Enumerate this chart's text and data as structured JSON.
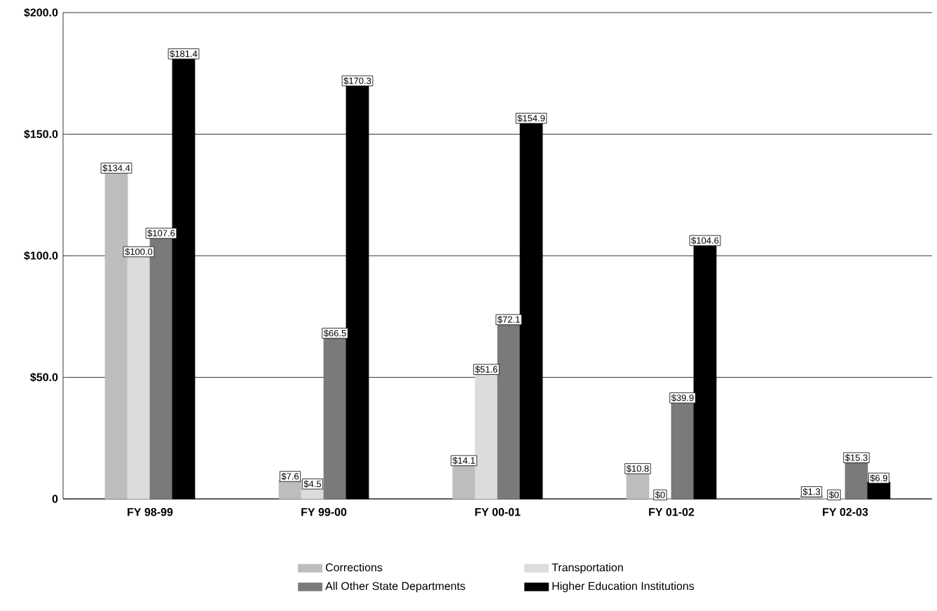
{
  "chart_data": {
    "type": "bar",
    "categories": [
      "FY 98-99",
      "FY 99-00",
      "FY 00-01",
      "FY 01-02",
      "FY 02-03"
    ],
    "series": [
      {
        "name": "Corrections",
        "color": "#bdbdbd",
        "values": [
          134.4,
          7.6,
          14.1,
          10.8,
          1.3
        ],
        "value_labels": [
          "$134.4",
          "$7.6",
          "$14.1",
          "$10.8",
          "$1.3"
        ]
      },
      {
        "name": "Transportation",
        "color": "#dcdcdc",
        "values": [
          100.0,
          4.5,
          51.6,
          0,
          0
        ],
        "value_labels": [
          "$100.0",
          "$4.5",
          "$51.6",
          "$0",
          "$0"
        ]
      },
      {
        "name": "All Other State Departments",
        "color": "#7a7a7a",
        "values": [
          107.6,
          66.5,
          72.1,
          39.9,
          15.3
        ],
        "value_labels": [
          "$107.6",
          "$66.5",
          "$72.1",
          "$39.9",
          "$15.3"
        ]
      },
      {
        "name": "Higher Education Institutions",
        "color": "#000000",
        "values": [
          181.4,
          170.3,
          154.9,
          104.6,
          6.9
        ],
        "value_labels": [
          "$181.4",
          "$170.3",
          "$154.9",
          "$104.6",
          "$6.9"
        ]
      }
    ],
    "ylim": [
      0,
      200
    ],
    "yticks": [
      {
        "value": 0,
        "label": "0"
      },
      {
        "value": 50,
        "label": "$50.0"
      },
      {
        "value": 100,
        "label": "$100.0"
      },
      {
        "value": 150,
        "label": "$150.0"
      },
      {
        "value": 200,
        "label": "$200.0"
      }
    ],
    "grid": "y",
    "legend": "bottom"
  }
}
